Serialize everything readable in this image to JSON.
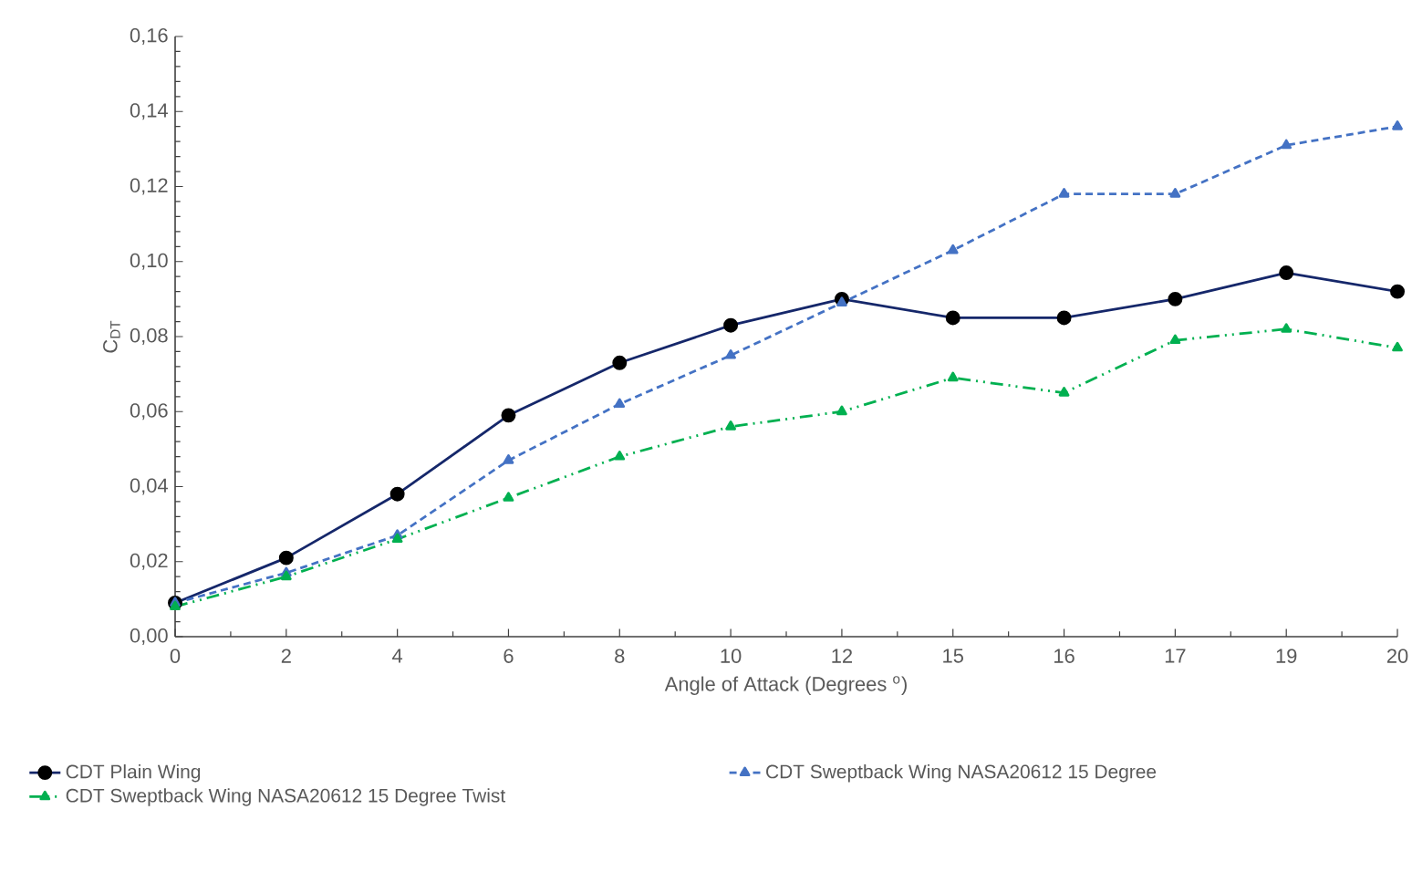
{
  "chart_data": {
    "type": "line",
    "xlabel": "Angle of Attack (Degrees $^{o}$)",
    "ylabel": "C$_{DT}$",
    "categories": [
      "0",
      "2",
      "4",
      "6",
      "8",
      "10",
      "12",
      "15",
      "16",
      "17",
      "19",
      "20"
    ],
    "ylim": [
      0,
      0.16
    ],
    "yticks": [
      {
        "value": 0,
        "label": "0,00"
      },
      {
        "value": 0.02,
        "label": "0,02"
      },
      {
        "value": 0.04,
        "label": "0,04"
      },
      {
        "value": 0.06,
        "label": "0,06"
      },
      {
        "value": 0.08,
        "label": "0,08"
      },
      {
        "value": 0.1,
        "label": "0,10"
      },
      {
        "value": 0.12,
        "label": "0,12"
      },
      {
        "value": 0.14,
        "label": "0,14"
      },
      {
        "value": 0.16,
        "label": "0,16"
      }
    ],
    "legend": "bottom",
    "series": [
      {
        "name": "CDT Plain Wing",
        "color": "#15276a",
        "marker": "circle",
        "line_style": "solid",
        "values": [
          0.009,
          0.021,
          0.038,
          0.059,
          0.073,
          0.083,
          0.09,
          0.085,
          0.085,
          0.09,
          0.097,
          0.092
        ]
      },
      {
        "name": "CDT  Sweptback Wing NASA20612 15 Degree",
        "color": "#4472c4",
        "marker": "triangle",
        "line_style": "dashed",
        "values": [
          0.009,
          0.017,
          0.027,
          0.047,
          0.062,
          0.075,
          0.089,
          0.103,
          0.118,
          0.118,
          0.131,
          0.136
        ]
      },
      {
        "name": "CDT  Sweptback Wing NASA20612 15 Degree Twist",
        "color": "#00b050",
        "marker": "triangle",
        "line_style": "dashdotted",
        "values": [
          0.008,
          0.016,
          0.026,
          0.037,
          0.048,
          0.056,
          0.06,
          0.069,
          0.065,
          0.079,
          0.082,
          0.077
        ]
      }
    ]
  }
}
